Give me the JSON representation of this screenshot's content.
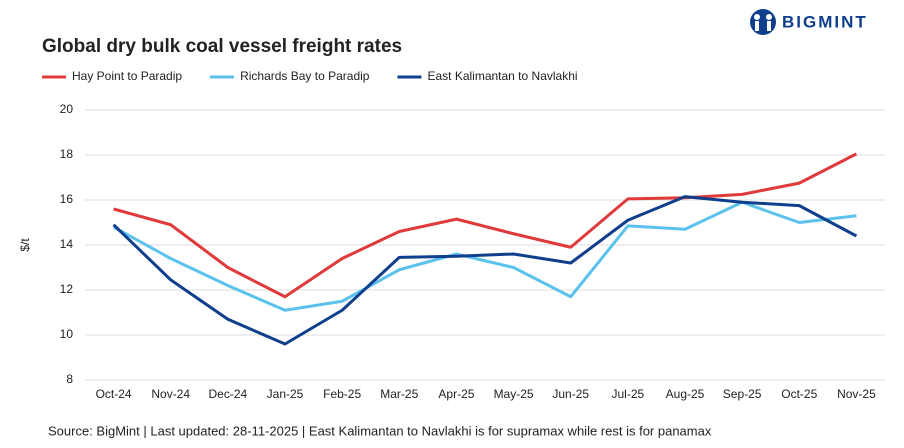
{
  "chart_data": {
    "type": "line",
    "title": "Global dry bulk coal vessel freight rates",
    "brand": "BIGMINT",
    "y_label": "$/t",
    "source": "Source: BigMint | Last updated: 28-11-2025 | East Kalimantan to Navlakhi is for supramax while rest is for panamax",
    "categories": [
      "Oct-24",
      "Nov-24",
      "Dec-24",
      "Jan-25",
      "Feb-25",
      "Mar-25",
      "Apr-25",
      "May-25",
      "Jun-25",
      "Jul-25",
      "Aug-25",
      "Sep-25",
      "Oct-25",
      "Nov-25"
    ],
    "series": [
      {
        "name": "Hay Point to Paradip",
        "color": "#e03a3a",
        "values": [
          15.6,
          14.9,
          13.0,
          11.7,
          13.4,
          14.6,
          15.15,
          14.5,
          13.9,
          16.05,
          16.1,
          16.25,
          16.75,
          18.05
        ]
      },
      {
        "name": "Richards Bay to Paradip",
        "color": "#5bc2ee",
        "values": [
          14.8,
          13.4,
          12.2,
          11.1,
          11.5,
          12.9,
          13.6,
          13.0,
          11.7,
          14.85,
          14.7,
          15.9,
          15.0,
          15.3
        ]
      },
      {
        "name": "East Kalimantan to Navlakhi",
        "color": "#0f3f8c",
        "values": [
          14.9,
          12.45,
          10.7,
          9.6,
          11.1,
          13.45,
          13.5,
          13.6,
          13.2,
          15.1,
          16.15,
          15.9,
          15.75,
          14.4
        ]
      }
    ],
    "ylim": [
      8,
      20
    ],
    "yticks": [
      8,
      10,
      12,
      14,
      16,
      18,
      20
    ],
    "grid": true,
    "legend": "top-left"
  }
}
